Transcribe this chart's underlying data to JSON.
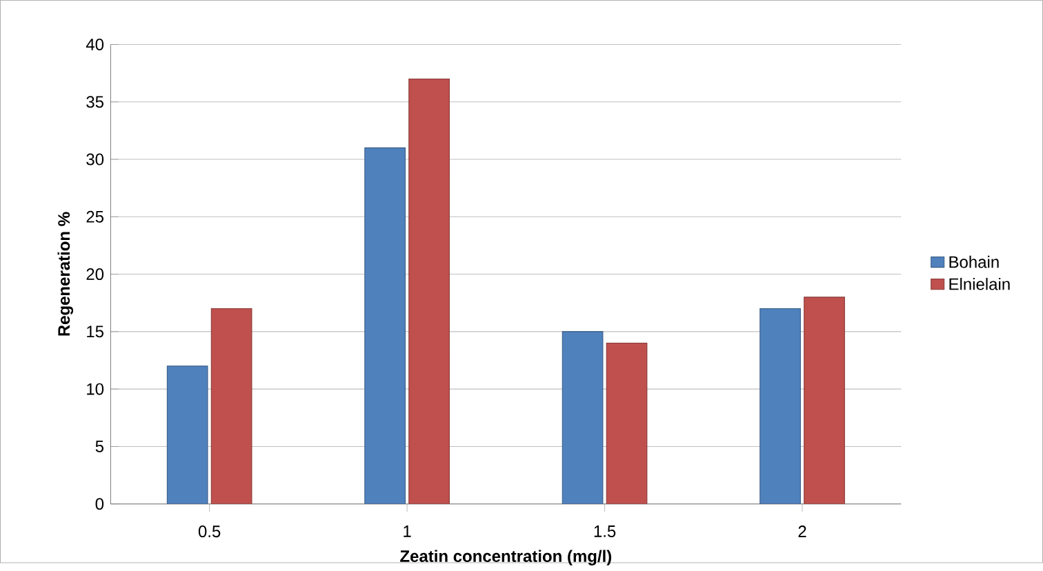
{
  "chart_data": {
    "type": "bar",
    "xlabel": "Zeatin  concentration (mg/l)",
    "ylabel": "Regeneration %",
    "categories": [
      "0.5",
      "1",
      "1.5",
      "2"
    ],
    "series": [
      {
        "name": "Bohain",
        "color": "#4f81bd",
        "values": [
          12,
          31,
          15,
          17
        ]
      },
      {
        "name": "Elnielain",
        "color": "#c0504d",
        "values": [
          17,
          37,
          14,
          18
        ]
      }
    ],
    "ylim": [
      0,
      40
    ],
    "yticks": [
      0,
      5,
      10,
      15,
      20,
      25,
      30,
      35,
      40
    ],
    "grid": "y",
    "legend": "right"
  }
}
